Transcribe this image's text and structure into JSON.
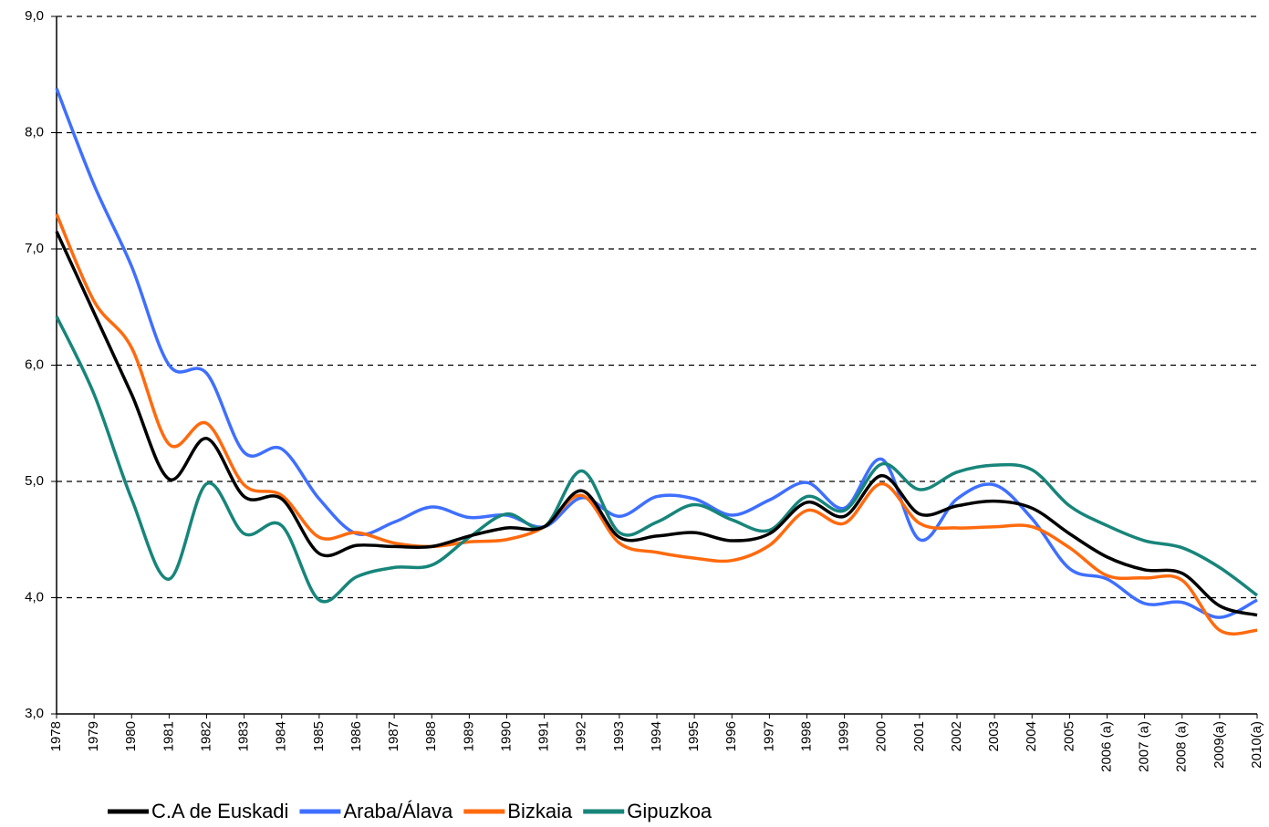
{
  "chart_data": {
    "type": "line",
    "categories": [
      "1978",
      "1979",
      "1980",
      "1981",
      "1982",
      "1983",
      "1984",
      "1985",
      "1986",
      "1987",
      "1988",
      "1989",
      "1990",
      "1991",
      "1992",
      "1993",
      "1994",
      "1995",
      "1996",
      "1997",
      "1998",
      "1999",
      "2000",
      "2001",
      "2002",
      "2003",
      "2004",
      "2005",
      "2006 (a)",
      "2007 (a)",
      "2008 (a)",
      "2009(a)",
      "2010(a)"
    ],
    "series": [
      {
        "name": "C.A de Euskadi",
        "color": "#000000",
        "values": [
          7.15,
          6.45,
          5.75,
          5.02,
          5.37,
          4.87,
          4.85,
          4.38,
          4.45,
          4.44,
          4.44,
          4.53,
          4.6,
          4.61,
          4.92,
          4.52,
          4.53,
          4.56,
          4.49,
          4.55,
          4.82,
          4.7,
          5.05,
          4.72,
          4.79,
          4.83,
          4.77,
          4.55,
          4.35,
          4.24,
          4.21,
          3.93,
          3.85
        ]
      },
      {
        "name": "Araba/Álava",
        "color": "#3f6fff",
        "values": [
          8.38,
          7.55,
          6.85,
          6.0,
          5.93,
          5.25,
          5.28,
          4.85,
          4.55,
          4.65,
          4.78,
          4.69,
          4.71,
          4.61,
          4.86,
          4.7,
          4.87,
          4.85,
          4.71,
          4.84,
          4.99,
          4.77,
          5.19,
          4.5,
          4.85,
          4.97,
          4.68,
          4.25,
          4.16,
          3.95,
          3.96,
          3.83,
          3.98
        ]
      },
      {
        "name": "Bizkaia",
        "color": "#ff6a0e",
        "values": [
          7.3,
          6.55,
          6.15,
          5.32,
          5.5,
          4.97,
          4.88,
          4.52,
          4.56,
          4.47,
          4.44,
          4.48,
          4.5,
          4.61,
          4.88,
          4.47,
          4.39,
          4.34,
          4.32,
          4.45,
          4.75,
          4.64,
          4.98,
          4.64,
          4.6,
          4.61,
          4.61,
          4.43,
          4.19,
          4.17,
          4.15,
          3.72,
          3.72
        ]
      },
      {
        "name": "Gipuzkoa",
        "color": "#17857a",
        "values": [
          6.42,
          5.75,
          4.85,
          4.16,
          4.98,
          4.55,
          4.62,
          3.98,
          4.18,
          4.26,
          4.28,
          4.52,
          4.72,
          4.61,
          5.09,
          4.56,
          4.65,
          4.8,
          4.67,
          4.58,
          4.87,
          4.75,
          5.15,
          4.93,
          5.08,
          5.14,
          5.1,
          4.79,
          4.62,
          4.49,
          4.43,
          4.26,
          4.02
        ]
      }
    ],
    "ylim": [
      3,
      9
    ],
    "yticks": [
      {
        "value": 3,
        "label": "3,0"
      },
      {
        "value": 4,
        "label": "4,0"
      },
      {
        "value": 5,
        "label": "5,0"
      },
      {
        "value": 6,
        "label": "6,0"
      },
      {
        "value": 7,
        "label": "7,0"
      },
      {
        "value": 8,
        "label": "8,0"
      },
      {
        "value": 9,
        "label": "9,0"
      }
    ],
    "grid": true
  }
}
